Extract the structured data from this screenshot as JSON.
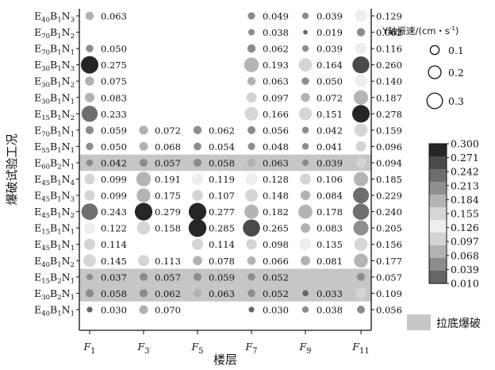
{
  "chart_data": {
    "type": "scatter",
    "xlabel": "楼层",
    "ylabel": "爆破试验工况",
    "floors": [
      {
        "base": "F",
        "sub": "1"
      },
      {
        "base": "F",
        "sub": "3"
      },
      {
        "base": "F",
        "sub": "5"
      },
      {
        "base": "F",
        "sub": "7"
      },
      {
        "base": "F",
        "sub": "9"
      },
      {
        "base": "F",
        "sub": "11"
      }
    ],
    "conditions": [
      {
        "E": "40",
        "B": "1",
        "N": "3",
        "values": [
          0.063,
          null,
          null,
          0.049,
          0.039,
          0.129
        ],
        "bottom_blast": false
      },
      {
        "E": "70",
        "B": "1",
        "N": "2",
        "values": [
          null,
          null,
          null,
          0.038,
          0.019,
          0.062
        ],
        "bottom_blast": false
      },
      {
        "E": "70",
        "B": "1",
        "N": "1",
        "values": [
          0.05,
          null,
          null,
          0.062,
          0.039,
          0.116
        ],
        "bottom_blast": false
      },
      {
        "E": "30",
        "B": "1",
        "N": "3",
        "values": [
          0.275,
          null,
          null,
          0.193,
          0.164,
          0.26
        ],
        "bottom_blast": false
      },
      {
        "E": "30",
        "B": "1",
        "N": "2",
        "values": [
          0.075,
          null,
          null,
          0.063,
          0.05,
          0.14
        ],
        "bottom_blast": false
      },
      {
        "E": "30",
        "B": "1",
        "N": "1",
        "values": [
          0.083,
          null,
          null,
          0.097,
          0.072,
          0.187
        ],
        "bottom_blast": false
      },
      {
        "E": "15",
        "B": "1",
        "N": "2",
        "values": [
          0.233,
          null,
          null,
          0.166,
          0.151,
          0.278
        ],
        "bottom_blast": false
      },
      {
        "E": "70",
        "B": "1",
        "N": "1",
        "values": [
          0.059,
          0.072,
          0.062,
          0.056,
          0.042,
          0.159
        ],
        "bottom_blast": false
      },
      {
        "E": "55",
        "B": "1",
        "N": "1",
        "values": [
          0.05,
          0.068,
          0.054,
          0.048,
          0.041,
          0.096
        ],
        "bottom_blast": false
      },
      {
        "E": "60",
        "B": "2",
        "N": "1",
        "values": [
          0.042,
          0.057,
          0.058,
          0.063,
          0.039,
          0.094
        ],
        "bottom_blast": true
      },
      {
        "E": "45",
        "B": "1",
        "N": "4",
        "values": [
          0.099,
          0.191,
          0.119,
          0.128,
          0.106,
          0.185
        ],
        "bottom_blast": false
      },
      {
        "E": "45",
        "B": "1",
        "N": "3",
        "values": [
          0.099,
          0.175,
          0.107,
          0.148,
          0.084,
          0.229
        ],
        "bottom_blast": false
      },
      {
        "E": "45",
        "B": "1",
        "N": "2",
        "values": [
          0.243,
          0.279,
          0.277,
          0.182,
          0.178,
          0.24
        ],
        "bottom_blast": false
      },
      {
        "E": "15",
        "B": "1",
        "N": "1",
        "values": [
          0.122,
          0.158,
          0.285,
          0.265,
          0.083,
          0.205
        ],
        "bottom_blast": false
      },
      {
        "E": "45",
        "B": "1",
        "N": "1",
        "values": [
          0.114,
          null,
          0.114,
          0.098,
          0.135,
          0.156
        ],
        "bottom_blast": false
      },
      {
        "E": "40",
        "B": "1",
        "N": "2",
        "values": [
          0.145,
          0.113,
          0.078,
          0.066,
          0.081,
          0.177
        ],
        "bottom_blast": false
      },
      {
        "E": "15",
        "B": "2",
        "N": "1",
        "values": [
          0.037,
          0.057,
          0.059,
          0.052,
          null,
          0.057
        ],
        "bottom_blast": true
      },
      {
        "E": "30",
        "B": "2",
        "N": "1",
        "values": [
          0.058,
          0.062,
          0.063,
          0.052,
          0.033,
          0.109
        ],
        "bottom_blast": true
      },
      {
        "E": "40",
        "B": "1",
        "N": "1",
        "values": [
          0.03,
          0.07,
          null,
          0.03,
          0.038,
          0.056
        ],
        "bottom_blast": false
      }
    ],
    "size_legend": {
      "title": "Y轴振速/(cm・s",
      "title_sup": "-1",
      "title_end": ")",
      "entries": [
        "0.1",
        "0.2",
        "0.3"
      ],
      "values": [
        0.1,
        0.2,
        0.3
      ]
    },
    "colorbar": {
      "ticks": [
        "0.300",
        "0.271",
        "0.242",
        "0.213",
        "0.184",
        "0.155",
        "0.126",
        "0.097",
        "0.068",
        "0.039",
        "0.010"
      ],
      "colors": [
        "#262626",
        "#4a4a4a",
        "#6e6e6e",
        "#8f8f8f",
        "#b4b4b4",
        "#d6d6d6",
        "#eeeeee",
        "#d4d4d4",
        "#b2b2b2",
        "#8c8c8c",
        "#666666"
      ]
    },
    "highlight_legend": {
      "label": "拉底爆破",
      "color": "#c6c6c6"
    }
  }
}
